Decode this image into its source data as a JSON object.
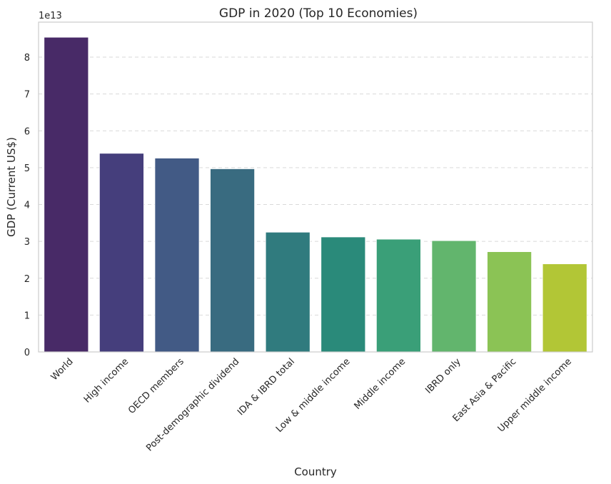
{
  "chart_data": {
    "type": "bar",
    "title": "GDP in 2020 (Top 10 Economies)",
    "xlabel": "Country",
    "ylabel": "GDP (Current US$)",
    "y_offset_label": "1e13",
    "y_scale": 10000000000000.0,
    "ylim": [
      0,
      8.95
    ],
    "yticks": [
      0,
      1,
      2,
      3,
      4,
      5,
      6,
      7,
      8
    ],
    "grid": "horizontal-dashed",
    "categories": [
      "World",
      "High income",
      "OECD members",
      "Post-demographic dividend",
      "IDA & IBRD total",
      "Low & middle income",
      "Middle income",
      "IBRD only",
      "East Asia & Pacific",
      "Upper middle income"
    ],
    "values": [
      8.54,
      5.39,
      5.26,
      4.97,
      3.25,
      3.12,
      3.06,
      3.02,
      2.72,
      2.39
    ],
    "colors": [
      "#482a67",
      "#453e7c",
      "#425a85",
      "#396b80",
      "#307b7e",
      "#2a8a7a",
      "#3a9f78",
      "#62b56d",
      "#8bc355",
      "#b2c636"
    ]
  }
}
